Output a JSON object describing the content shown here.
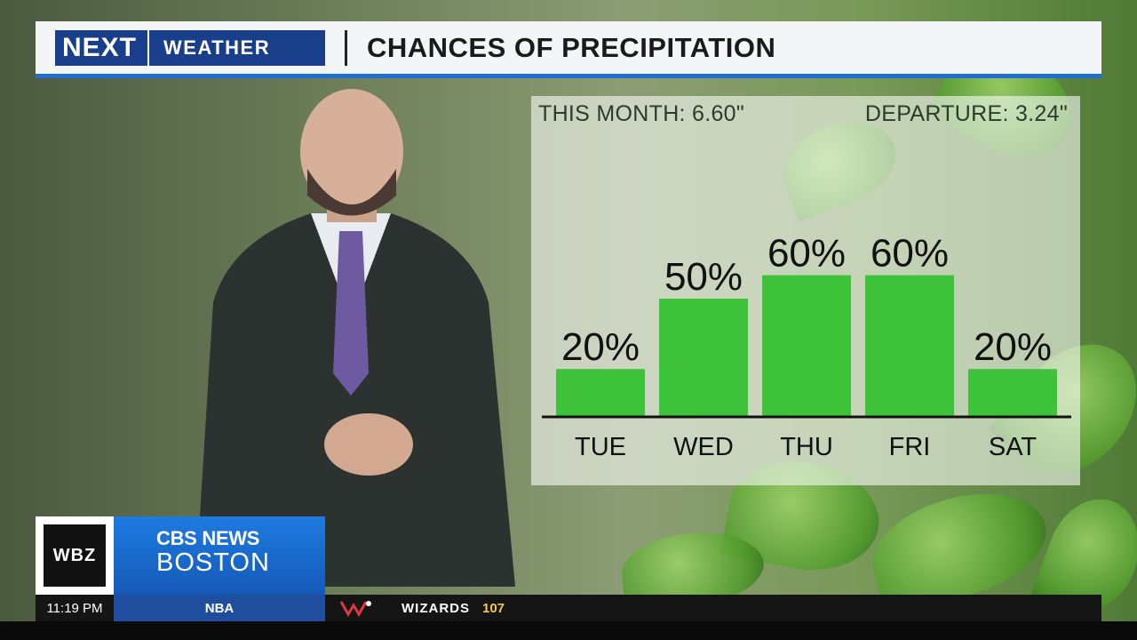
{
  "header": {
    "brand_next": "NEXT",
    "brand_weather": "WEATHER",
    "title": "CHANCES OF PRECIPITATION"
  },
  "panel": {
    "this_month": "THIS MONTH:  6.60\"",
    "departure": "DEPARTURE:  3.24\""
  },
  "chart_data": {
    "type": "bar",
    "categories": [
      "TUE",
      "WED",
      "THU",
      "FRI",
      "SAT"
    ],
    "values": [
      20,
      50,
      60,
      60,
      20
    ],
    "value_labels": [
      "20%",
      "50%",
      "60%",
      "60%",
      "20%"
    ],
    "ylim": [
      0,
      100
    ],
    "grid": false,
    "bar_color": "#3ec23a"
  },
  "lower_third": {
    "station": "WBZ",
    "network": "CBS NEWS",
    "city": "BOSTON"
  },
  "ticker": {
    "time": "11:19 PM",
    "league": "NBA",
    "team": "WIZARDS",
    "score": "107"
  },
  "colors": {
    "brand_blue": "#1a3f8a",
    "accent_blue": "#1f6fd1",
    "bar_green": "#3ec23a"
  }
}
